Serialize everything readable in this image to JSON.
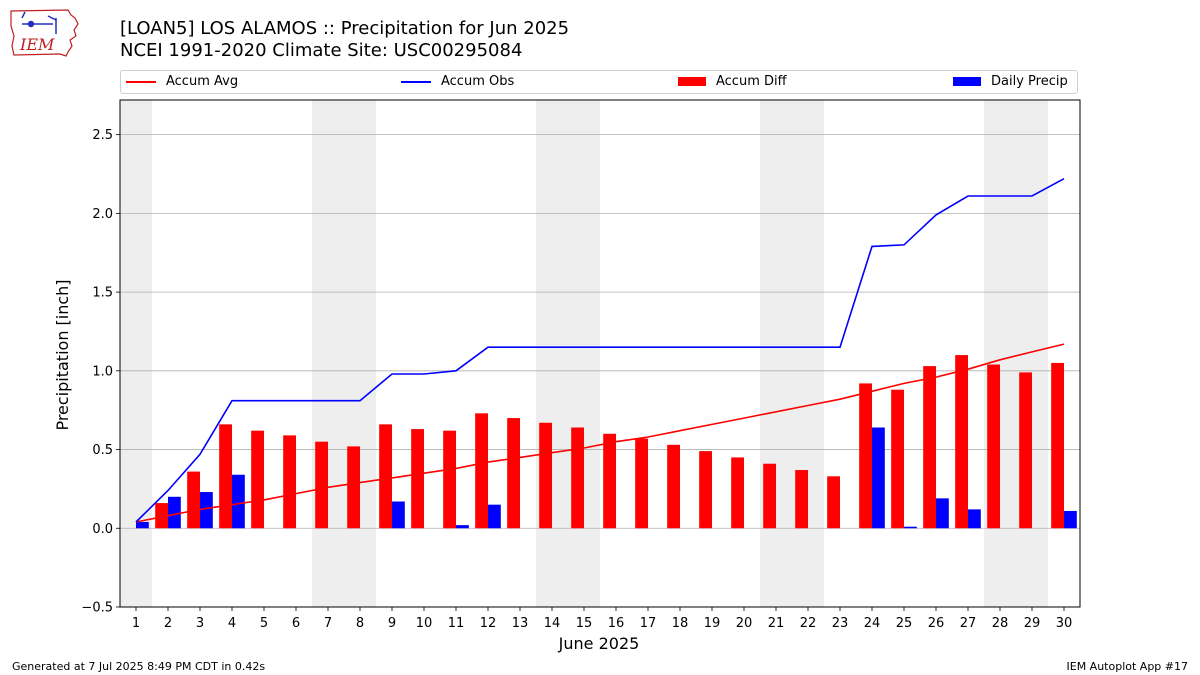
{
  "header": {
    "title_line1": "[LOAN5] LOS ALAMOS :: Precipitation for Jun 2025",
    "title_line2": "NCEI 1991-2020 Climate Site: USC00295084",
    "logo_text": "IEM"
  },
  "footer": {
    "generated": "Generated at 7 Jul 2025 8:49 PM CDT in 0.42s",
    "app": "IEM Autoplot App #17"
  },
  "colors": {
    "avg": "#ff0000",
    "obs": "#0000ff",
    "diff": "#ff0000",
    "daily": "#0000ff",
    "weekend_band": "#eeeeee",
    "grid": "#b0b0b0"
  },
  "chart_data": {
    "type": "bar",
    "title": "[LOAN5] LOS ALAMOS :: Precipitation for Jun 2025",
    "xlabel": "June 2025",
    "ylabel": "Precipitation [inch]",
    "xlim": [
      0.5,
      30.5
    ],
    "ylim": [
      -0.5,
      2.72
    ],
    "yticks": [
      -0.5,
      0.0,
      0.5,
      1.0,
      1.5,
      2.0,
      2.5
    ],
    "ytick_labels": [
      "−0.5",
      "0.0",
      "0.5",
      "1.0",
      "1.5",
      "2.0",
      "2.5"
    ],
    "grid": "horizontal",
    "legend_position": "top",
    "days": [
      1,
      2,
      3,
      4,
      5,
      6,
      7,
      8,
      9,
      10,
      11,
      12,
      13,
      14,
      15,
      16,
      17,
      18,
      19,
      20,
      21,
      22,
      23,
      24,
      25,
      26,
      27,
      28,
      29,
      30
    ],
    "weekend_bands": [
      [
        1,
        1
      ],
      [
        7,
        8
      ],
      [
        14,
        15
      ],
      [
        21,
        22
      ],
      [
        28,
        29
      ]
    ],
    "series": [
      {
        "name": "Accum Avg",
        "kind": "line",
        "color": "#ff0000",
        "values": [
          0.04,
          0.08,
          0.12,
          0.15,
          0.18,
          0.22,
          0.26,
          0.29,
          0.32,
          0.35,
          0.38,
          0.42,
          0.45,
          0.48,
          0.51,
          0.55,
          0.58,
          0.62,
          0.66,
          0.7,
          0.74,
          0.78,
          0.82,
          0.87,
          0.92,
          0.96,
          1.01,
          1.07,
          1.12,
          1.17
        ]
      },
      {
        "name": "Accum Obs",
        "kind": "line",
        "color": "#0000ff",
        "values": [
          0.04,
          0.24,
          0.47,
          0.81,
          0.81,
          0.81,
          0.81,
          0.81,
          0.98,
          0.98,
          1.0,
          1.15,
          1.15,
          1.15,
          1.15,
          1.15,
          1.15,
          1.15,
          1.15,
          1.15,
          1.15,
          1.15,
          1.15,
          1.79,
          1.8,
          1.99,
          2.11,
          2.11,
          2.11,
          2.22
        ]
      },
      {
        "name": "Accum Diff",
        "kind": "bar",
        "color": "#ff0000",
        "values": [
          0.0,
          0.16,
          0.36,
          0.66,
          0.62,
          0.59,
          0.55,
          0.52,
          0.66,
          0.63,
          0.62,
          0.73,
          0.7,
          0.67,
          0.64,
          0.6,
          0.57,
          0.53,
          0.49,
          0.45,
          0.41,
          0.37,
          0.33,
          0.92,
          0.88,
          1.03,
          1.1,
          1.04,
          0.99,
          1.05
        ]
      },
      {
        "name": "Daily Precip",
        "kind": "bar",
        "color": "#0000ff",
        "values": [
          0.04,
          0.2,
          0.23,
          0.34,
          0.0,
          0.0,
          0.0,
          0.0,
          0.17,
          0.0,
          0.02,
          0.15,
          0.0,
          0.0,
          0.0,
          0.0,
          0.0,
          0.0,
          0.0,
          0.0,
          0.0,
          0.0,
          0.0,
          0.64,
          0.01,
          0.19,
          0.12,
          0.0,
          0.0,
          0.11
        ]
      }
    ]
  }
}
